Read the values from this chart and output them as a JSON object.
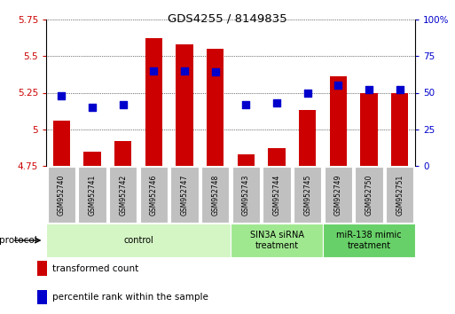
{
  "title": "GDS4255 / 8149835",
  "samples": [
    "GSM952740",
    "GSM952741",
    "GSM952742",
    "GSM952746",
    "GSM952747",
    "GSM952748",
    "GSM952743",
    "GSM952744",
    "GSM952745",
    "GSM952749",
    "GSM952750",
    "GSM952751"
  ],
  "transformed_count": [
    5.06,
    4.85,
    4.92,
    5.62,
    5.58,
    5.55,
    4.83,
    4.87,
    5.13,
    5.36,
    5.25,
    5.25
  ],
  "percentile_rank": [
    48,
    40,
    42,
    65,
    65,
    64,
    42,
    43,
    50,
    55,
    52,
    52
  ],
  "groups": [
    {
      "label": "control",
      "start": 0,
      "end": 6,
      "color": "#d4f5c4",
      "text_color": "#000000"
    },
    {
      "label": "SIN3A siRNA\ntreatment",
      "start": 6,
      "end": 9,
      "color": "#a0e890",
      "text_color": "#000000"
    },
    {
      "label": "miR-138 mimic\ntreatment",
      "start": 9,
      "end": 12,
      "color": "#68d068",
      "text_color": "#000000"
    }
  ],
  "ylim_left": [
    4.75,
    5.75
  ],
  "ylim_right": [
    0,
    100
  ],
  "yticks_left": [
    4.75,
    5.0,
    5.25,
    5.5,
    5.75
  ],
  "yticks_right": [
    0,
    25,
    50,
    75,
    100
  ],
  "ytick_labels_left": [
    "4.75",
    "5",
    "5.25",
    "5.5",
    "5.75"
  ],
  "ytick_labels_right": [
    "0",
    "25",
    "50",
    "75",
    "100%"
  ],
  "bar_color": "#cc0000",
  "dot_color": "#0000cc",
  "bar_bottom": 4.75,
  "legend_items": [
    {
      "label": "transformed count",
      "color": "#cc0000"
    },
    {
      "label": "percentile rank within the sample",
      "color": "#0000cc"
    }
  ],
  "protocol_label": "protocol",
  "dot_size": 30,
  "sample_box_color": "#c0c0c0",
  "plot_bg": "#ffffff"
}
